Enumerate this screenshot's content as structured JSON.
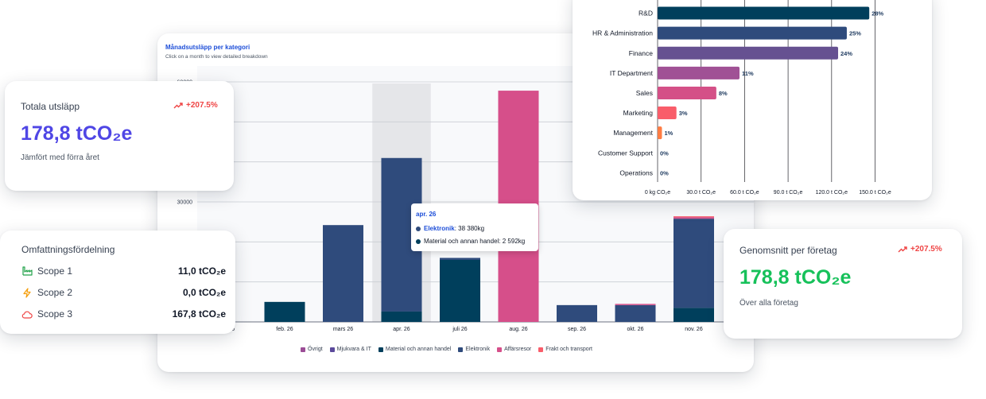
{
  "monthly_chart": {
    "title": "Månadsutsläpp per kategori",
    "subtitle": "Click on a month to view detailed breakdown",
    "tooltip": {
      "title": "apr. 26",
      "rows": [
        {
          "label": "Elektronik",
          "value": "38 380kg"
        },
        {
          "label": "Material och annan handel",
          "value": "2 592kg"
        }
      ]
    }
  },
  "dept_chart": {},
  "total_card": {
    "title": "Totala utsläpp",
    "trend": "+207.5%",
    "value": "178,8 tCO₂e",
    "subtitle": "Jämfört med förra året"
  },
  "scope_card": {
    "title": "Omfattningsfördelning",
    "rows": [
      {
        "label": "Scope 1",
        "value": "11,0 tCO₂e",
        "icon": "factory-icon"
      },
      {
        "label": "Scope 2",
        "value": "0,0 tCO₂e",
        "icon": "lightning-icon"
      },
      {
        "label": "Scope 3",
        "value": "167,8 tCO₂e",
        "icon": "cloud-icon"
      }
    ]
  },
  "avg_card": {
    "title": "Genomsnitt per företag",
    "trend": "+207.5%",
    "value": "178,8 tCO₂e",
    "subtitle": "Över alla företag"
  },
  "colors": {
    "primary_blue": "#4f46e5",
    "green": "#16c15a",
    "trend_red": "#ef4444",
    "ovrigt": "#9b4d96",
    "mjukvara": "#5b4a9b",
    "material": "#003f5c",
    "elektronik": "#2f4b7c",
    "affarsresor": "#d64f8a",
    "frakt": "#f95d6a"
  },
  "chart_data": [
    {
      "type": "bar",
      "title": "Månadsutsläpp per kategori",
      "ylim": [
        0,
        60000
      ],
      "y_ticks": [
        {
          "value": 30000,
          "label": "30000"
        },
        {
          "value": 60000,
          "label": "60000"
        }
      ],
      "grid": true,
      "legend_position": "bottom",
      "categories": [
        "feb. 26",
        "mars 26",
        "apr. 26",
        "juli 26",
        "aug. 26",
        "sep. 26",
        "okt. 26",
        "nov. 26"
      ],
      "leftmost_tick_label_fragment": "6",
      "highlighted_category": "apr. 26",
      "series": [
        {
          "name": "Övrigt",
          "color": "#9b4d96",
          "values": [
            0,
            0,
            0,
            0,
            0,
            0,
            0,
            0
          ]
        },
        {
          "name": "Mjukvara & IT",
          "color": "#5b4a9b",
          "values": [
            0,
            0,
            0,
            0,
            0,
            0,
            0,
            0
          ]
        },
        {
          "name": "Material och annan handel",
          "color": "#003f5c",
          "values": [
            5000,
            0,
            2592,
            15500,
            0,
            0,
            0,
            3500
          ]
        },
        {
          "name": "Elektronik",
          "color": "#2f4b7c",
          "values": [
            0,
            24200,
            38380,
            500,
            0,
            4200,
            4200,
            22300
          ]
        },
        {
          "name": "Affärsresor",
          "color": "#d64f8a",
          "values": [
            0,
            0,
            0,
            0,
            57800,
            0,
            300,
            400
          ]
        },
        {
          "name": "Frakt och transport",
          "color": "#f95d6a",
          "values": [
            0,
            0,
            0,
            0,
            0,
            0,
            0,
            200
          ]
        }
      ]
    },
    {
      "type": "bar",
      "orientation": "horizontal",
      "xlim": [
        0,
        150
      ],
      "x_ticks": [
        {
          "value": 0,
          "label": "0 kg CO₂e"
        },
        {
          "value": 30,
          "label": "30.0 t CO₂e"
        },
        {
          "value": 60,
          "label": "60.0 t CO₂e"
        },
        {
          "value": 90,
          "label": "90.0 t CO₂e"
        },
        {
          "value": 120,
          "label": "120.0 t CO₂e"
        },
        {
          "value": 150,
          "label": "150.0 t CO₂e"
        }
      ],
      "categories": [
        "R&D",
        "HR & Administration",
        "Finance",
        "IT Department",
        "Sales",
        "Marketing",
        "Management",
        "Customer Support",
        "Operations"
      ],
      "values": [
        146,
        130.5,
        124.5,
        56.5,
        40.5,
        13,
        3,
        0,
        0
      ],
      "labels": [
        "28%",
        "25%",
        "24%",
        "11%",
        "8%",
        "3%",
        "1%",
        "0%",
        "0%"
      ],
      "colors": [
        "#003f5c",
        "#2f4b7c",
        "#665191",
        "#a05195",
        "#d45087",
        "#f95d6a",
        "#ff7c43",
        "#ffa600",
        "#ffa600"
      ]
    }
  ]
}
